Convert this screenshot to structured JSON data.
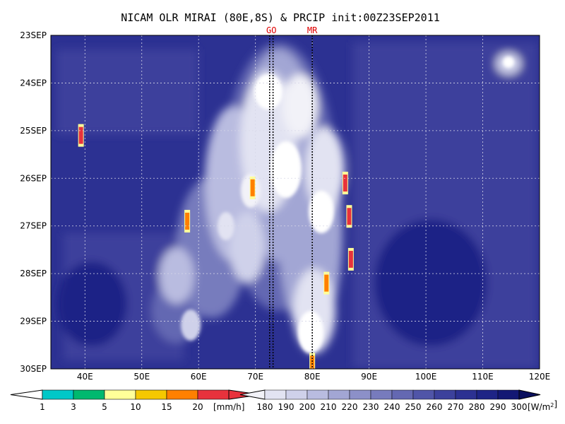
{
  "chart_data": {
    "type": "heatmap",
    "title": "NICAM OLR MIRAI (80E,8S) & PRCIP init:00Z23SEP2011",
    "x_ticks": [
      "40E",
      "50E",
      "60E",
      "70E",
      "80E",
      "90E",
      "100E",
      "110E",
      "120E"
    ],
    "x_tick_values": [
      40,
      50,
      60,
      70,
      80,
      90,
      100,
      110,
      120
    ],
    "xlim": [
      34,
      120
    ],
    "y_ticks": [
      "23SEP",
      "24SEP",
      "25SEP",
      "26SEP",
      "27SEP",
      "28SEP",
      "29SEP",
      "30SEP"
    ],
    "ylim": [
      "23SEP",
      "30SEP"
    ],
    "grid": true,
    "reference_lines": [
      {
        "label": "GO",
        "x": [
          72.5,
          73.1
        ],
        "style": "dotted"
      },
      {
        "label": "MR",
        "x": [
          80.0
        ],
        "style": "dotted"
      }
    ],
    "precip_colorbar": {
      "levels": [
        "1",
        "3",
        "5",
        "10",
        "15",
        "20"
      ],
      "unit": "[mm/h]",
      "colors": [
        "#00c8c8",
        "#00b96f",
        "#ffff99",
        "#f5c800",
        "#ff8000",
        "#e8323c"
      ]
    },
    "olr_colorbar": {
      "levels": [
        "180",
        "190",
        "200",
        "210",
        "220",
        "230",
        "240",
        "250",
        "260",
        "270",
        "280",
        "290",
        "300"
      ],
      "unit": "[W/m^2]",
      "colors": [
        "#f2f2f8",
        "#e2e3f2",
        "#cfd1ea",
        "#b9bce0",
        "#a2a6d4",
        "#8c90c8",
        "#777bbd",
        "#6468b2",
        "#5055a8",
        "#3c419c",
        "#2c3192",
        "#1e2486",
        "#131874",
        "#0a0f5e"
      ]
    },
    "olr_field_description": "Low OLR (white/light) convective band between ~65E and ~87E spanning 24SEP-30SEP; high OLR (dark blue) elsewhere",
    "precip_cells": [
      {
        "lon": 39.3,
        "date": 2.1,
        "mm_h": 20
      },
      {
        "lon": 85.8,
        "date": 3.1,
        "mm_h": 20
      },
      {
        "lon": 86.5,
        "date": 3.8,
        "mm_h": 20
      },
      {
        "lon": 86.8,
        "date": 4.7,
        "mm_h": 20
      },
      {
        "lon": 69.5,
        "date": 3.2,
        "mm_h": 15
      },
      {
        "lon": 58.0,
        "date": 3.9,
        "mm_h": 15
      },
      {
        "lon": 80.0,
        "date": 6.9,
        "mm_h": 15
      },
      {
        "lon": 82.5,
        "date": 5.2,
        "mm_h": 15
      }
    ]
  }
}
